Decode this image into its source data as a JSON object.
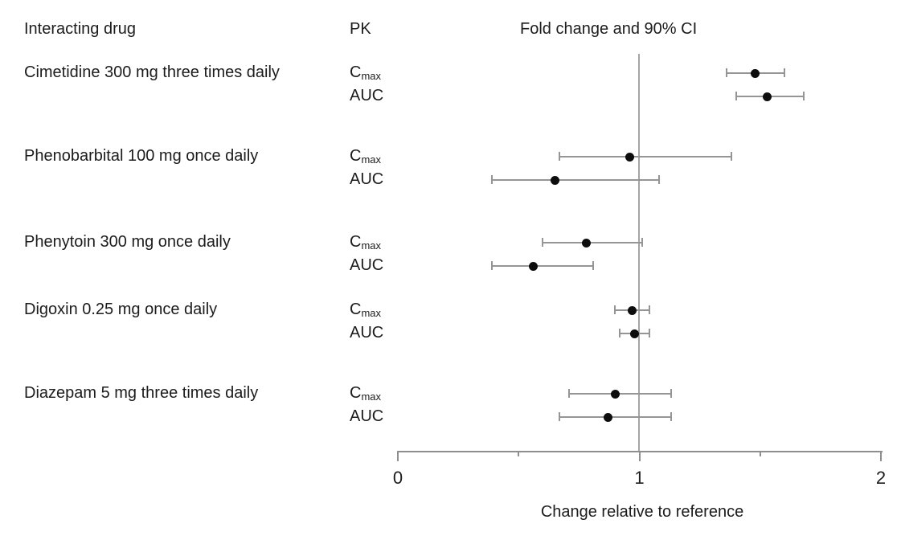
{
  "figure": {
    "background": "#ffffff",
    "text_color": "#1c1c1c",
    "line_color": "#8f8f8f",
    "error_bar_color": "#959595",
    "dot_color": "#0d0d0d"
  },
  "headers": {
    "drug_column": "Interacting drug",
    "pk_column": "PK",
    "estimate_column": "Fold change and 90% CI"
  },
  "chart_data": {
    "type": "scatter",
    "variant": "forest-plot",
    "title": "Fold change and 90% CI",
    "xlabel": "Change relative to reference",
    "xlim": [
      0,
      2
    ],
    "x_ticks": [
      0,
      1,
      2
    ],
    "x_tick_labels": [
      "0",
      "1",
      "2"
    ],
    "x_minor_ticks": [
      0.5,
      1.5
    ],
    "reference_line_x": 1,
    "grid": false,
    "legend": false,
    "groups": [
      {
        "drug": "Cimetidine 300 mg three times daily",
        "rows": [
          {
            "pk_main": "C",
            "pk_sub": "max",
            "value": 1.48,
            "ci_low": 1.36,
            "ci_high": 1.6
          },
          {
            "pk_main": "AUC",
            "pk_sub": "",
            "value": 1.53,
            "ci_low": 1.4,
            "ci_high": 1.68
          }
        ]
      },
      {
        "drug": "Phenobarbital 100 mg once daily",
        "rows": [
          {
            "pk_main": "C",
            "pk_sub": "max",
            "value": 0.96,
            "ci_low": 0.67,
            "ci_high": 1.38
          },
          {
            "pk_main": "AUC",
            "pk_sub": "",
            "value": 0.65,
            "ci_low": 0.39,
            "ci_high": 1.08
          }
        ]
      },
      {
        "drug": "Phenytoin 300 mg once daily",
        "rows": [
          {
            "pk_main": "C",
            "pk_sub": "max",
            "value": 0.78,
            "ci_low": 0.6,
            "ci_high": 1.01
          },
          {
            "pk_main": "AUC",
            "pk_sub": "",
            "value": 0.56,
            "ci_low": 0.39,
            "ci_high": 0.81
          }
        ]
      },
      {
        "drug": "Digoxin 0.25 mg once daily",
        "rows": [
          {
            "pk_main": "C",
            "pk_sub": "max",
            "value": 0.97,
            "ci_low": 0.9,
            "ci_high": 1.04
          },
          {
            "pk_main": "AUC",
            "pk_sub": "",
            "value": 0.98,
            "ci_low": 0.92,
            "ci_high": 1.04
          }
        ]
      },
      {
        "drug": "Diazepam 5 mg three times daily",
        "rows": [
          {
            "pk_main": "C",
            "pk_sub": "max",
            "value": 0.9,
            "ci_low": 0.71,
            "ci_high": 1.13
          },
          {
            "pk_main": "AUC",
            "pk_sub": "",
            "value": 0.87,
            "ci_low": 0.67,
            "ci_high": 1.13
          }
        ]
      }
    ]
  }
}
